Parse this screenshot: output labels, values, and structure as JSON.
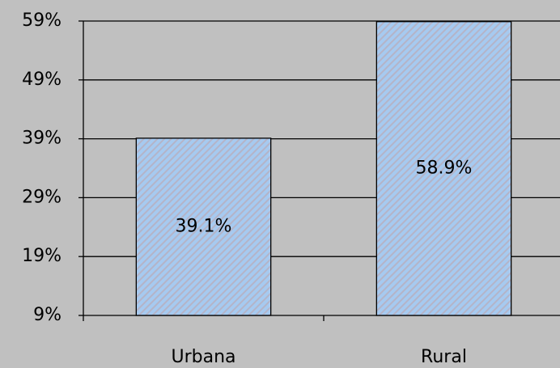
{
  "chart_data": {
    "type": "bar",
    "categories": [
      "Urbana",
      "Rural"
    ],
    "values": [
      39.1,
      58.9
    ],
    "value_labels": [
      "39.1%",
      "58.9%"
    ],
    "color": "#a6caf0",
    "ylim": [
      9,
      59
    ],
    "yticks": [
      {
        "value": 9,
        "label": "9%"
      },
      {
        "value": 19,
        "label": "19%"
      },
      {
        "value": 29,
        "label": "29%"
      },
      {
        "value": 39,
        "label": "39%"
      },
      {
        "value": 49,
        "label": "49%"
      },
      {
        "value": 59,
        "label": "59%"
      }
    ],
    "grid": true
  }
}
